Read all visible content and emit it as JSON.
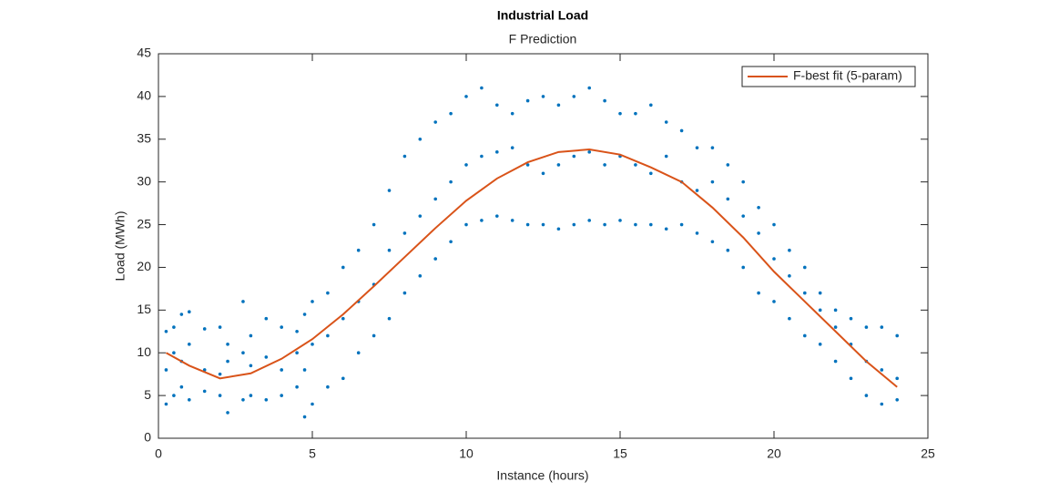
{
  "chart_data": {
    "type": "scatter",
    "title": "Industrial Load",
    "subtitle": "F Prediction",
    "x_label": "Instance (hours)",
    "y_label": "Load (MWh)",
    "xlim": [
      0,
      25
    ],
    "xticks": [
      0,
      5,
      10,
      15,
      20,
      25
    ],
    "ylim": [
      0,
      45
    ],
    "yticks": [
      0,
      5,
      10,
      15,
      20,
      25,
      30,
      35,
      40,
      45
    ],
    "legend": "northeast",
    "series": [
      {
        "type": "scatter",
        "color": "#0072BD",
        "x": [
          0.25,
          0.25,
          0.25,
          0.5,
          0.5,
          0.5,
          0.75,
          0.75,
          0.75,
          1,
          1,
          1,
          1.5,
          1.5,
          1.5,
          2,
          2,
          2,
          2.25,
          2.25,
          2.25,
          2.75,
          2.75,
          2.75,
          3,
          3,
          3,
          3.5,
          3.5,
          3.5,
          4,
          4,
          4,
          4.5,
          4.5,
          4.5,
          4.75,
          4.75,
          4.75,
          5,
          5,
          5,
          5.5,
          5.5,
          5.5,
          6,
          6,
          6,
          6.5,
          6.5,
          6.5,
          7,
          7,
          7,
          7.5,
          7.5,
          7.5,
          8,
          8,
          8,
          8.5,
          8.5,
          8.5,
          9,
          9,
          9,
          9.5,
          9.5,
          9.5,
          10,
          10,
          10,
          10.5,
          10.5,
          10.5,
          11,
          11,
          11,
          11.5,
          11.5,
          11.5,
          12,
          12,
          12,
          12.5,
          12.5,
          12.5,
          13,
          13,
          13,
          13.5,
          13.5,
          13.5,
          14,
          14,
          14,
          14.5,
          14.5,
          14.5,
          15,
          15,
          15,
          15.5,
          15.5,
          15.5,
          16,
          16,
          16,
          16.5,
          16.5,
          16.5,
          17,
          17,
          17,
          17.5,
          17.5,
          17.5,
          18,
          18,
          18,
          18.5,
          18.5,
          18.5,
          19,
          19,
          19,
          19.5,
          19.5,
          19.5,
          20,
          20,
          20,
          20.5,
          20.5,
          20.5,
          21,
          21,
          21,
          21.5,
          21.5,
          21.5,
          22,
          22,
          22,
          22.5,
          22.5,
          22.5,
          23,
          23,
          23,
          23.5,
          23.5,
          23.5,
          24,
          24,
          24
        ],
        "values": [
          4,
          8,
          12.5,
          5,
          10,
          13,
          6,
          9,
          14.5,
          4.5,
          11,
          14.8,
          5.5,
          8,
          12.8,
          5,
          7.5,
          13,
          3,
          9,
          11,
          4.5,
          10,
          16,
          5,
          8.5,
          12,
          4.5,
          9.5,
          14,
          5,
          8,
          13,
          6,
          10,
          12.5,
          2.5,
          8,
          14.5,
          4,
          11,
          16,
          6,
          12,
          17,
          7,
          14,
          20,
          10,
          16,
          22,
          12,
          18,
          25,
          14,
          22,
          29,
          17,
          24,
          33,
          19,
          26,
          35,
          21,
          28,
          37,
          23,
          30,
          38,
          25,
          32,
          40,
          25.5,
          33,
          41,
          26,
          33.5,
          39,
          25.5,
          34,
          38,
          25,
          32,
          39.5,
          25,
          31,
          40,
          24.5,
          32,
          39,
          25,
          33,
          40,
          25.5,
          33.5,
          41,
          25,
          32,
          39.5,
          25.5,
          33,
          38,
          25,
          32,
          38,
          25,
          31,
          39,
          24.5,
          33,
          37,
          25,
          30,
          36,
          24,
          29,
          34,
          23,
          30,
          34,
          22,
          28,
          32,
          20,
          26,
          30,
          17,
          24,
          27,
          16,
          21,
          25,
          14,
          19,
          22,
          12,
          17,
          20,
          11,
          15,
          17,
          9,
          13,
          15,
          7,
          11,
          14,
          5,
          9,
          13,
          4,
          8,
          13,
          4.5,
          7,
          12
        ]
      },
      {
        "type": "line",
        "name": "F-best fit (5-param)",
        "color": "#D95319",
        "x": [
          0.25,
          1,
          2,
          3,
          4,
          5,
          6,
          7,
          8,
          9,
          10,
          11,
          12,
          13,
          14,
          15,
          16,
          17,
          18,
          19,
          20,
          21,
          22,
          23,
          24
        ],
        "values": [
          10,
          8.5,
          7,
          7.6,
          9.3,
          11.6,
          14.5,
          17.8,
          21.2,
          24.6,
          27.8,
          30.4,
          32.3,
          33.5,
          33.8,
          33.2,
          31.7,
          30,
          27,
          23.5,
          19.5,
          16,
          12.5,
          9,
          6
        ]
      }
    ]
  }
}
